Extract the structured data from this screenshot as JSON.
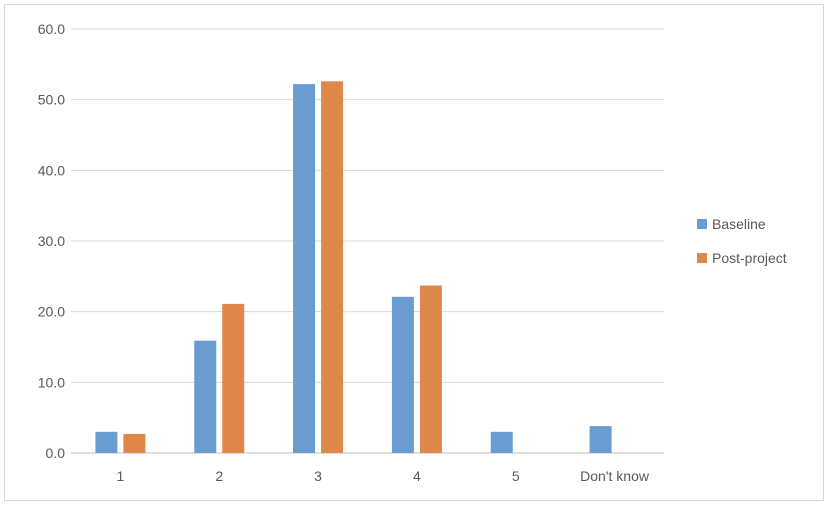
{
  "chart_data": {
    "type": "bar",
    "categories": [
      "1",
      "2",
      "3",
      "4",
      "5",
      "Don't know"
    ],
    "series": [
      {
        "name": "Baseline",
        "color": "#6a9bd1",
        "values": [
          3.0,
          15.9,
          52.2,
          22.1,
          3.0,
          3.8
        ]
      },
      {
        "name": "Post-project",
        "color": "#e0874a",
        "values": [
          2.7,
          21.1,
          52.6,
          23.7,
          null,
          null
        ]
      }
    ],
    "ylim": [
      0,
      60
    ],
    "yticks": [
      "0.0",
      "10.0",
      "20.0",
      "30.0",
      "40.0",
      "50.0",
      "60.0"
    ],
    "ytick_values": [
      0,
      10,
      20,
      30,
      40,
      50,
      60
    ],
    "grid": true,
    "legend_position": "right",
    "title": "",
    "xlabel": "",
    "ylabel": ""
  }
}
